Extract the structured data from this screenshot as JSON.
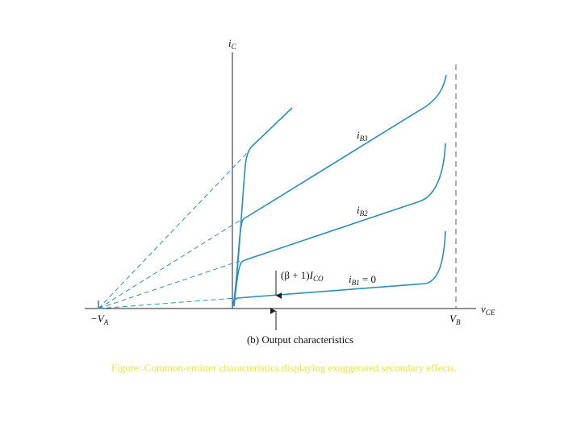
{
  "axes": {
    "y_label": {
      "main": "i",
      "sub": "C"
    },
    "x_label": {
      "main": "v",
      "sub": "CE"
    },
    "left_point": {
      "main": "−V",
      "sub": "A"
    },
    "right_point": {
      "main": "V",
      "sub": "B"
    }
  },
  "curves": [
    {
      "main": "i",
      "sub": "B3"
    },
    {
      "main": "i",
      "sub": "B2"
    },
    {
      "main": "i",
      "sub": "B1",
      "suffix": " = 0"
    }
  ],
  "leakage": {
    "prefix": "(β + 1)",
    "main": "I",
    "sub": "CO"
  },
  "subtitle": "(b) Output characteristics",
  "caption": "Figure: Common-emitter characteristics displaying exaggerated secondary effects."
}
